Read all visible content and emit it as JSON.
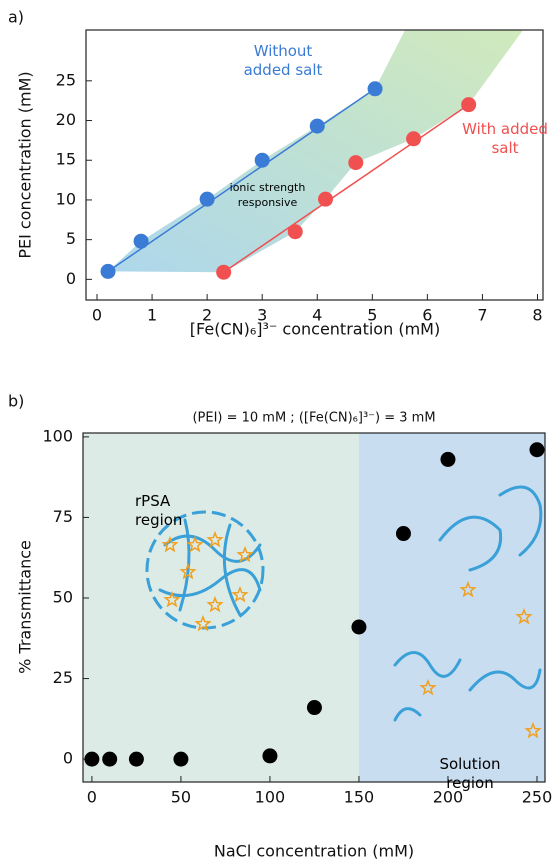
{
  "chart_data": [
    {
      "type": "scatter",
      "panel_label": "a)",
      "x_label": "[Fe(CN)₆]³⁻ concentration (mM)",
      "y_label": "PEI concentration (mM)",
      "annotation": "ionic strength responsive",
      "xlim": [
        -0.2,
        8.1
      ],
      "xticks": [
        0,
        1,
        2,
        3,
        4,
        5,
        6,
        7,
        8
      ],
      "ylim": [
        -2.6,
        31.4
      ],
      "yticks": [
        0,
        5,
        10,
        15,
        20,
        25
      ],
      "series": [
        {
          "name": "Without added salt",
          "color": "#3a7bd5",
          "x": [
            0.2,
            0.8,
            2,
            3,
            4,
            5.05
          ],
          "values": [
            1,
            4.8,
            10.1,
            15,
            19.3,
            24
          ]
        },
        {
          "name": "With added salt",
          "color": "#f05050",
          "x": [
            2.3,
            3.6,
            4.15,
            4.7,
            5.75,
            6.75
          ],
          "values": [
            0.9,
            6,
            10.1,
            14.7,
            17.7,
            22
          ]
        }
      ]
    },
    {
      "type": "scatter",
      "panel_label": "b)",
      "title": "(PEI) = 10 mM ; ([Fe(CN)₆]³⁻) = 3 mM",
      "x_label": "NaCl concentration (mM)",
      "y_label": "% Transmittance",
      "xlim": [
        -5,
        254.5
      ],
      "xticks": [
        0,
        50,
        100,
        150,
        200,
        250
      ],
      "ylim": [
        -7.1,
        101.2
      ],
      "yticks": [
        0,
        25,
        50,
        75,
        100
      ],
      "regions": [
        {
          "label": "rPSA region",
          "x": [
            -5,
            150
          ],
          "color": "#dcebe6"
        },
        {
          "label": "Solution region",
          "x": [
            150,
            254.5
          ],
          "color": "#c9ddf0"
        }
      ],
      "series": [
        {
          "color": "#000000",
          "x": [
            0,
            10,
            25,
            50,
            100,
            125,
            150,
            175,
            200,
            250
          ],
          "values": [
            0,
            0,
            0,
            0,
            1,
            16,
            41,
            70,
            93,
            96
          ]
        }
      ]
    }
  ]
}
